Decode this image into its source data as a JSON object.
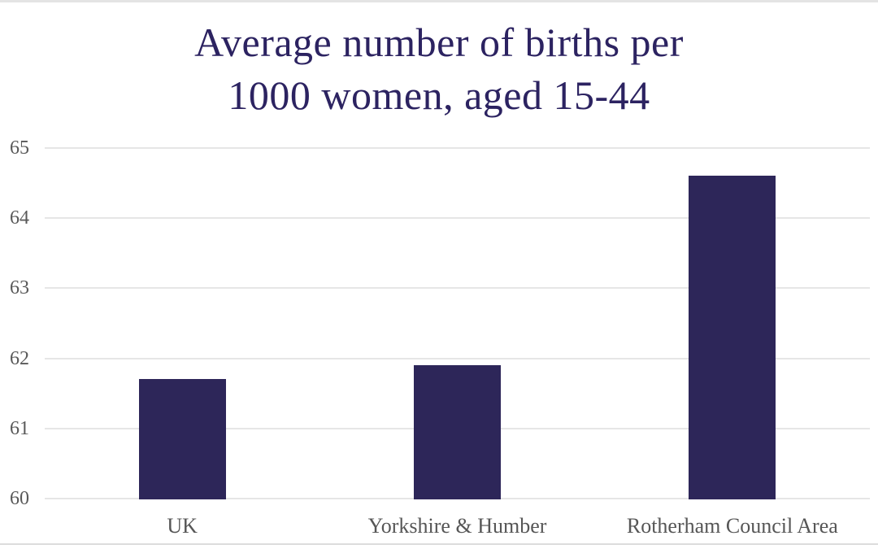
{
  "chart_data": {
    "type": "bar",
    "title": "Average number of births per 1000 women, aged 15-44",
    "title_lines": [
      "Average number of births per",
      "1000 women, aged 15-44"
    ],
    "categories": [
      "UK",
      "Yorkshire & Humber",
      "Rotherham Council Area"
    ],
    "values": [
      61.7,
      61.9,
      64.6
    ],
    "xlabel": "",
    "ylabel": "",
    "ylim": [
      60,
      65
    ],
    "yticks": [
      60,
      61,
      62,
      63,
      64,
      65
    ],
    "grid": true,
    "legend": "none",
    "colors": {
      "bar": "#2d2659",
      "title": "#2c2361",
      "axis_text": "#565656",
      "ytick_text": "#595959",
      "gridline": "#e6e6e6",
      "edge_strip": "#e0e0e0",
      "background": "#ffffff"
    }
  }
}
